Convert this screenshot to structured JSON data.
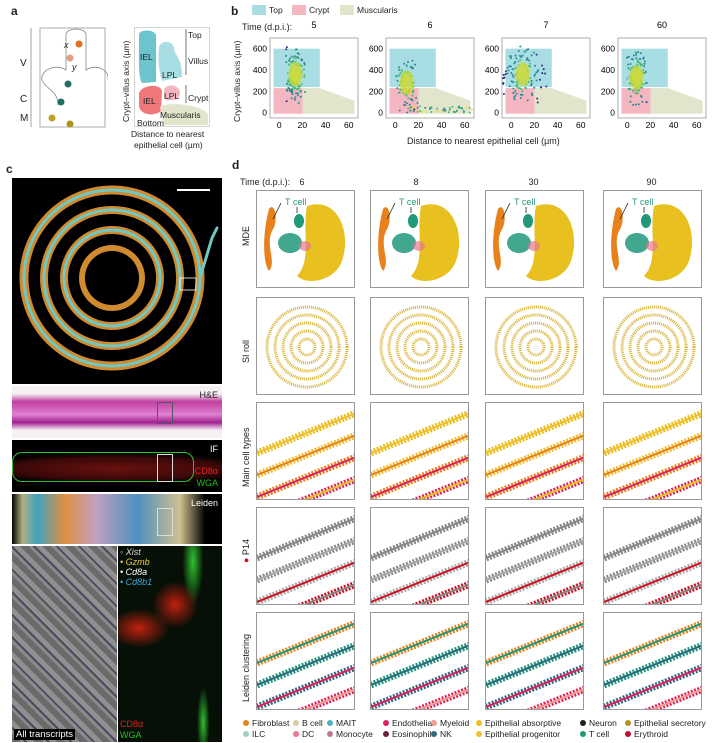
{
  "panel_a": {
    "label": "a",
    "zones": [
      "V",
      "C",
      "M"
    ],
    "coord_labels": [
      "x",
      "y"
    ],
    "schematic": {
      "ylabel": "Crypt–villus axis (µm)",
      "xlabel_line1": "Distance to nearest",
      "xlabel_line2": "epithelial cell (µm)",
      "regions": [
        "IEL",
        "LPL",
        "IEL",
        "LPL",
        "Muscularis"
      ],
      "side_labels": [
        "Top",
        "Villus",
        "Crypt"
      ],
      "bottom_label": "Bottom"
    }
  },
  "panel_b": {
    "label": "b",
    "time_label": "Time (d.p.i.):",
    "legend": [
      {
        "name": "Top",
        "color": "#a8dde3"
      },
      {
        "name": "Crypt",
        "color": "#f4b6c0"
      },
      {
        "name": "Muscularis",
        "color": "#e3e4cc"
      }
    ]
  },
  "chart_data": [
    {
      "type": "scatter",
      "panels": [
        "5",
        "6",
        "7",
        "60"
      ],
      "xlabel": "Distance to nearest epithelial cell (µm)",
      "ylabel": "Crypt–villus axis (µm)",
      "xlim": [
        -8,
        68
      ],
      "ylim": [
        -50,
        700
      ],
      "xticks": [
        "0",
        "20",
        "40",
        "60"
      ],
      "yticks": [
        "0",
        "200",
        "400",
        "600"
      ],
      "regions": {
        "Top": {
          "x": [
            -5,
            35
          ],
          "y": [
            240,
            600
          ]
        },
        "Crypt": {
          "x": [
            -5,
            22
          ],
          "y": [
            -10,
            230
          ]
        },
        "Muscularis": {
          "polygon": [
            [
              20,
              -10
            ],
            [
              65,
              -10
            ],
            [
              65,
              110
            ],
            [
              35,
              230
            ],
            [
              20,
              230
            ]
          ]
        }
      },
      "density_peak": [
        {
          "panel": "5",
          "x": 14,
          "y": 360
        },
        {
          "panel": "6",
          "x": 10,
          "y": 280
        },
        {
          "panel": "7",
          "x": 10,
          "y": 360
        },
        {
          "panel": "60",
          "x": 8,
          "y": 330
        }
      ]
    }
  ],
  "panel_c": {
    "label": "c",
    "images": {
      "he": "H&E",
      "if": "IF",
      "leiden": "Leiden",
      "all": "All transcripts"
    },
    "if_channels": [
      {
        "name": "CD8α",
        "color": "#e02020"
      },
      {
        "name": "WGA",
        "color": "#20c020"
      }
    ],
    "transcripts": [
      {
        "name": "Xist",
        "color": "#d0d0d0"
      },
      {
        "name": "Gzmb",
        "color": "#e8d040"
      },
      {
        "name": "Cd8a",
        "color": "#ffffff"
      },
      {
        "name": "Cd8b1",
        "color": "#40a8d8"
      }
    ]
  },
  "panel_d": {
    "label": "d",
    "time_label": "Time (d.p.i.):",
    "times": [
      "6",
      "8",
      "30",
      "90"
    ],
    "rows": [
      "MDE",
      "SI roll",
      "Main cell types",
      "P14",
      "Leiden clustering"
    ],
    "tcell_label": "T cell",
    "legend": [
      {
        "name": "Fibroblast",
        "color": "#e8801c"
      },
      {
        "name": "B cell",
        "color": "#d8cca0"
      },
      {
        "name": "MAIT",
        "color": "#50b0c0"
      },
      {
        "name": "Endothelial",
        "color": "#e0205a"
      },
      {
        "name": "Myeloid",
        "color": "#f0a090"
      },
      {
        "name": "Epithelial absorptive",
        "color": "#e8c020"
      },
      {
        "name": "Neuron",
        "color": "#202020"
      },
      {
        "name": "Epithelial secretory",
        "color": "#b89020"
      },
      {
        "name": "ILC",
        "color": "#a0d0c0"
      },
      {
        "name": "DC",
        "color": "#e87890"
      },
      {
        "name": "Monocyte",
        "color": "#c07890"
      },
      {
        "name": "Eosinophil",
        "color": "#702040"
      },
      {
        "name": "NK",
        "color": "#306880"
      },
      {
        "name": "Epithelial progenitor",
        "color": "#f0c030"
      },
      {
        "name": "T cell",
        "color": "#20987a"
      },
      {
        "name": "Erythroid",
        "color": "#c01030"
      }
    ]
  }
}
